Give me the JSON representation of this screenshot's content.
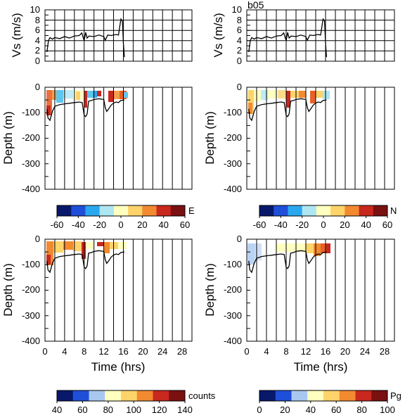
{
  "station": "b05",
  "chart_data": [
    {
      "panel": "vs-left",
      "type": "line",
      "ylabel": "Vs (m/s)",
      "xlim": [
        0,
        30
      ],
      "ylim": [
        0,
        10
      ],
      "yticks": [
        0,
        2,
        4,
        6,
        8,
        10
      ],
      "x": [
        0.4,
        0.7,
        1.0,
        1.5,
        2,
        3,
        4,
        5,
        6,
        7,
        7.5,
        8,
        8.3,
        8.6,
        9,
        10,
        11,
        12,
        12.3,
        12.8,
        13.5,
        14.5,
        15,
        15.3,
        15.5,
        15.8,
        16.0,
        16.2
      ],
      "y": [
        1.8,
        4.0,
        4.6,
        4.3,
        4.6,
        4.4,
        4.8,
        4.5,
        4.9,
        5.0,
        5.5,
        4.0,
        5.6,
        4.5,
        4.9,
        4.8,
        5.1,
        4.8,
        4.1,
        5.1,
        5.0,
        5.2,
        5.1,
        7.0,
        8.2,
        7.8,
        3.5,
        0.8
      ]
    },
    {
      "panel": "vs-right",
      "type": "line",
      "title": "b05",
      "ylabel": "Vs (m/s)",
      "xlim": [
        0,
        30
      ],
      "ylim": [
        0,
        10
      ],
      "yticks": [
        0,
        2,
        4,
        6,
        8,
        10
      ],
      "x": [
        0.4,
        0.7,
        1.0,
        1.5,
        2,
        3,
        4,
        5,
        6,
        7,
        7.5,
        8,
        8.3,
        8.6,
        9,
        10,
        11,
        12,
        12.3,
        12.8,
        13.5,
        14.5,
        15,
        15.3,
        15.5,
        15.8,
        16.0,
        16.2
      ],
      "y": [
        1.8,
        4.0,
        4.6,
        4.3,
        4.6,
        4.4,
        4.8,
        4.5,
        4.9,
        5.0,
        5.5,
        4.0,
        5.6,
        4.5,
        4.9,
        4.8,
        5.1,
        4.8,
        4.1,
        5.1,
        5.0,
        5.2,
        5.1,
        7.0,
        8.2,
        7.8,
        3.5,
        0.8
      ]
    },
    {
      "panel": "depth-E",
      "type": "heatmap",
      "ylabel": "Depth (m)",
      "xlim": [
        0,
        30
      ],
      "ylim": [
        -400,
        0
      ],
      "yticks": [
        0,
        -100,
        -200,
        -300,
        -400
      ],
      "colorbar_label": "E",
      "colorbar_ticks": [
        "-60",
        "-40",
        "-20",
        "0",
        "20",
        "40",
        "60"
      ],
      "colorbar_colors": [
        "#08186a",
        "#1f4fd8",
        "#2aa8ef",
        "#aee6f2",
        "#ffffc0",
        "#fdd36a",
        "#f28a30",
        "#c8281e",
        "#7a1010"
      ]
    },
    {
      "panel": "depth-N",
      "type": "heatmap",
      "ylabel": "Depth (m)",
      "xlim": [
        0,
        30
      ],
      "ylim": [
        -400,
        0
      ],
      "yticks": [
        0,
        -100,
        -200,
        -300,
        -400
      ],
      "colorbar_label": "N",
      "colorbar_ticks": [
        "-60",
        "-40",
        "-20",
        "0",
        "20",
        "40",
        "60"
      ],
      "colorbar_colors": [
        "#08186a",
        "#1f4fd8",
        "#2aa8ef",
        "#aee6f2",
        "#ffffc0",
        "#fdd36a",
        "#f28a30",
        "#c8281e",
        "#7a1010"
      ]
    },
    {
      "panel": "depth-counts",
      "type": "heatmap",
      "ylabel": "Depth (m)",
      "xlabel": "Time (hrs)",
      "xlim": [
        0,
        30
      ],
      "xticks": [
        0,
        4,
        8,
        12,
        16,
        20,
        24,
        28
      ],
      "ylim": [
        -400,
        0
      ],
      "yticks": [
        0,
        -100,
        -200,
        -300,
        -400
      ],
      "colorbar_label": "counts",
      "colorbar_ticks": [
        "40",
        "60",
        "80",
        "100",
        "120",
        "140"
      ],
      "colorbar_colors": [
        "#08186a",
        "#1f4fd8",
        "#a8c8f0",
        "#ffffc0",
        "#fdd36a",
        "#f28a30",
        "#c8281e",
        "#7a1010"
      ]
    },
    {
      "panel": "depth-Pg",
      "type": "heatmap",
      "ylabel": "Depth (m)",
      "xlabel": "Time (hrs)",
      "xlim": [
        0,
        30
      ],
      "xticks": [
        0,
        4,
        8,
        12,
        16,
        20,
        24,
        28
      ],
      "ylim": [
        -400,
        0
      ],
      "yticks": [
        0,
        -100,
        -200,
        -300,
        -400
      ],
      "colorbar_label": "Pg",
      "colorbar_ticks": [
        "0",
        "20",
        "40",
        "60",
        "80",
        "100"
      ],
      "colorbar_colors": [
        "#08186a",
        "#1f4fd8",
        "#a8c8f0",
        "#ffffc0",
        "#fdd36a",
        "#f28a30",
        "#c8281e",
        "#7a1010"
      ]
    }
  ],
  "bottom_depth": {
    "x": [
      0.4,
      0.6,
      1.0,
      1.5,
      2,
      3,
      4,
      5,
      6,
      7,
      7.6,
      8,
      8.3,
      8.6,
      8.9,
      9.5,
      10,
      11,
      12,
      12.3,
      12.6,
      13,
      13.5,
      14,
      14.5,
      15,
      15.5,
      16.2
    ],
    "y": [
      -85,
      -120,
      -130,
      -95,
      -75,
      -68,
      -65,
      -63,
      -60,
      -58,
      -60,
      -110,
      -115,
      -105,
      -55,
      -52,
      -48,
      -45,
      -48,
      -80,
      -95,
      -85,
      -70,
      -62,
      -58,
      -60,
      -52,
      -50
    ]
  }
}
